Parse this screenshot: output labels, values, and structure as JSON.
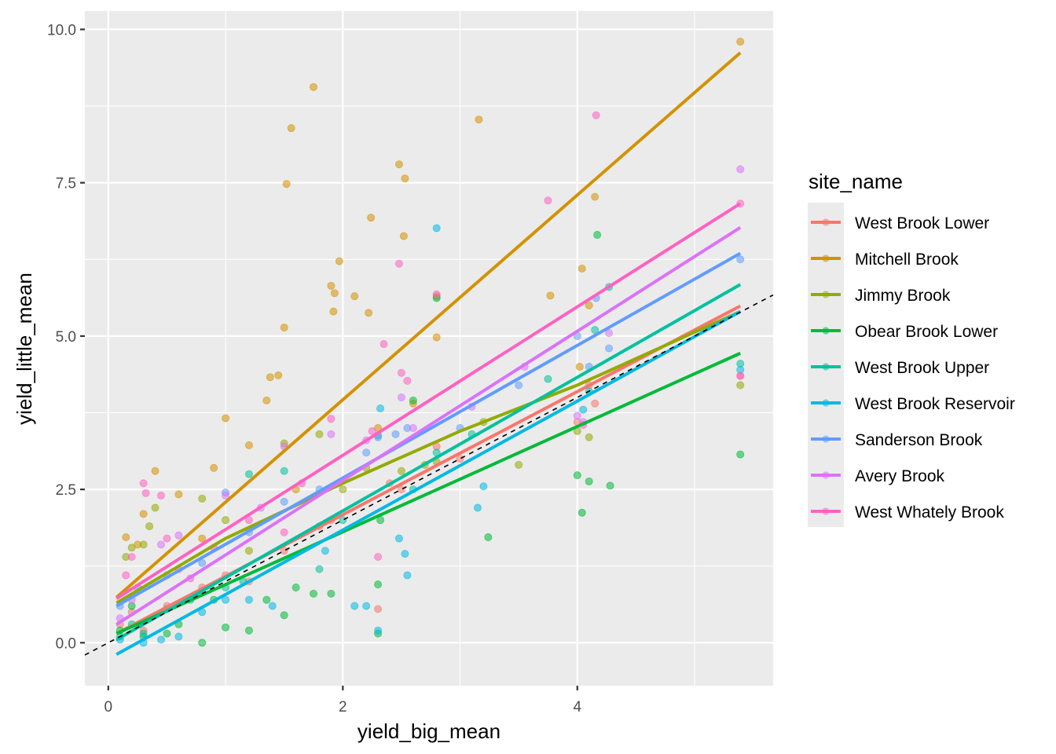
{
  "chart_data": {
    "type": "scatter",
    "title": "",
    "xlabel": "yield_big_mean",
    "ylabel": "yield_little_mean",
    "xlim": [
      -0.2,
      5.67
    ],
    "ylim": [
      -0.7,
      10.3
    ],
    "x_ticks": [
      0,
      2,
      4
    ],
    "x_tick_labels": [
      "0",
      "2",
      "4"
    ],
    "x_minor_ticks": [
      1,
      3,
      5
    ],
    "y_ticks": [
      0,
      2.5,
      5,
      7.5,
      10
    ],
    "y_tick_labels": [
      "0.0",
      "2.5",
      "5.0",
      "7.5",
      "10.0"
    ],
    "y_minor_ticks": [
      1.25,
      3.75,
      6.25,
      8.75
    ],
    "grid": true,
    "reference_line": {
      "type": "dashed",
      "slope": 1,
      "intercept": 0,
      "color": "#000000"
    },
    "legend": {
      "title": "site_name",
      "position": "right"
    },
    "series": [
      {
        "name": "West Brook Lower",
        "color": "#F8766D",
        "fit": {
          "x": [
            0.07,
            5.39
          ],
          "y": [
            0.15,
            5.49
          ]
        },
        "points": [
          [
            0.1,
            0.3
          ],
          [
            0.2,
            0.5
          ],
          [
            0.3,
            0.2
          ],
          [
            0.5,
            0.6
          ],
          [
            0.8,
            0.9
          ],
          [
            1.0,
            1.1
          ],
          [
            1.2,
            1.0
          ],
          [
            1.5,
            1.5
          ],
          [
            1.8,
            1.9
          ],
          [
            1.9,
            2.0
          ],
          [
            2.3,
            0.55
          ],
          [
            2.4,
            2.6
          ],
          [
            2.5,
            2.5
          ],
          [
            2.8,
            3.2
          ],
          [
            3.0,
            3.0
          ],
          [
            4.0,
            3.6
          ],
          [
            4.1,
            4.2
          ],
          [
            4.15,
            3.9
          ],
          [
            5.39,
            4.35
          ]
        ]
      },
      {
        "name": "Mitchell Brook",
        "color": "#D39200",
        "fit": {
          "x": [
            0.07,
            5.39
          ],
          "y": [
            0.74,
            9.62
          ]
        },
        "points": [
          [
            0.15,
            1.72
          ],
          [
            0.25,
            1.6
          ],
          [
            0.4,
            2.8
          ],
          [
            0.6,
            2.42
          ],
          [
            0.9,
            2.85
          ],
          [
            1.0,
            3.66
          ],
          [
            1.2,
            3.22
          ],
          [
            1.35,
            3.95
          ],
          [
            1.38,
            4.33
          ],
          [
            1.45,
            4.36
          ],
          [
            1.5,
            5.14
          ],
          [
            1.52,
            7.48
          ],
          [
            1.56,
            8.39
          ],
          [
            1.75,
            9.06
          ],
          [
            1.9,
            5.82
          ],
          [
            1.92,
            5.4
          ],
          [
            1.93,
            5.7
          ],
          [
            1.97,
            6.22
          ],
          [
            2.1,
            5.65
          ],
          [
            2.22,
            5.38
          ],
          [
            2.24,
            6.93
          ],
          [
            2.48,
            7.8
          ],
          [
            2.53,
            7.57
          ],
          [
            2.52,
            6.63
          ],
          [
            2.8,
            4.98
          ],
          [
            2.8,
            5.65
          ],
          [
            3.16,
            8.53
          ],
          [
            3.77,
            5.66
          ],
          [
            4.04,
            6.1
          ],
          [
            4.02,
            4.5
          ],
          [
            4.1,
            5.5
          ],
          [
            4.15,
            7.27
          ],
          [
            5.39,
            9.8
          ],
          [
            0.3,
            2.1
          ],
          [
            0.8,
            1.7
          ],
          [
            1.6,
            2.5
          ],
          [
            2.3,
            3.5
          ],
          [
            2.6,
            3.9
          ]
        ]
      },
      {
        "name": "Jimmy Brook",
        "color": "#93AA00",
        "fit": {
          "x": [
            0.07,
            1.0,
            2.0,
            3.0,
            4.0,
            5.39
          ],
          "y": [
            0.65,
            1.7,
            2.6,
            3.45,
            4.2,
            5.4
          ]
        },
        "points": [
          [
            0.15,
            1.4
          ],
          [
            0.2,
            1.55
          ],
          [
            0.3,
            1.6
          ],
          [
            0.35,
            1.9
          ],
          [
            0.4,
            2.2
          ],
          [
            0.8,
            2.35
          ],
          [
            1.0,
            2.0
          ],
          [
            1.2,
            1.5
          ],
          [
            1.5,
            3.25
          ],
          [
            1.8,
            3.4
          ],
          [
            2.0,
            2.5
          ],
          [
            2.2,
            2.85
          ],
          [
            2.5,
            2.8
          ],
          [
            2.7,
            2.9
          ],
          [
            2.8,
            2.95
          ],
          [
            3.2,
            3.6
          ],
          [
            3.5,
            2.9
          ],
          [
            4.0,
            3.45
          ],
          [
            4.1,
            3.35
          ],
          [
            5.39,
            4.2
          ]
        ]
      },
      {
        "name": "Obear Brook Lower",
        "color": "#00BA38",
        "fit": {
          "x": [
            0.07,
            5.39
          ],
          "y": [
            0.15,
            4.72
          ]
        },
        "points": [
          [
            0.1,
            0.2
          ],
          [
            0.3,
            0.1
          ],
          [
            0.5,
            0.15
          ],
          [
            0.8,
            0.0
          ],
          [
            0.9,
            0.7
          ],
          [
            1.0,
            0.25
          ],
          [
            1.2,
            0.2
          ],
          [
            1.35,
            0.7
          ],
          [
            1.5,
            0.45
          ],
          [
            1.6,
            0.9
          ],
          [
            1.75,
            0.8
          ],
          [
            1.9,
            0.8
          ],
          [
            2.3,
            0.95
          ],
          [
            2.3,
            0.15
          ],
          [
            2.32,
            2.0
          ],
          [
            2.6,
            3.95
          ],
          [
            2.8,
            5.62
          ],
          [
            3.24,
            1.72
          ],
          [
            4.0,
            2.73
          ],
          [
            4.04,
            2.12
          ],
          [
            4.1,
            2.63
          ],
          [
            4.28,
            2.56
          ],
          [
            4.17,
            6.65
          ],
          [
            5.39,
            3.07
          ],
          [
            0.2,
            0.6
          ],
          [
            0.6,
            0.3
          ]
        ]
      },
      {
        "name": "West Brook Upper",
        "color": "#00C19F",
        "fit": {
          "x": [
            0.07,
            5.39
          ],
          "y": [
            0.05,
            5.84
          ]
        },
        "points": [
          [
            0.1,
            0.1
          ],
          [
            0.2,
            0.3
          ],
          [
            0.3,
            0.15
          ],
          [
            0.5,
            0.55
          ],
          [
            0.7,
            0.7
          ],
          [
            1.0,
            0.9
          ],
          [
            1.15,
            1.0
          ],
          [
            1.2,
            2.75
          ],
          [
            1.5,
            2.8
          ],
          [
            1.8,
            1.2
          ],
          [
            2.0,
            2.0
          ],
          [
            2.3,
            3.38
          ],
          [
            2.6,
            2.5
          ],
          [
            2.8,
            3.1
          ],
          [
            3.1,
            3.4
          ],
          [
            3.75,
            4.3
          ],
          [
            4.1,
            4.1
          ],
          [
            4.15,
            5.1
          ],
          [
            4.27,
            5.8
          ],
          [
            5.39,
            4.55
          ]
        ]
      },
      {
        "name": "West Brook Reservoir",
        "color": "#00B9E3",
        "fit": {
          "x": [
            0.07,
            5.39
          ],
          "y": [
            -0.19,
            5.4
          ]
        },
        "points": [
          [
            0.1,
            0.05
          ],
          [
            0.3,
            0.0
          ],
          [
            0.45,
            0.05
          ],
          [
            0.6,
            0.1
          ],
          [
            0.8,
            0.5
          ],
          [
            1.0,
            0.7
          ],
          [
            1.2,
            0.7
          ],
          [
            1.4,
            0.6
          ],
          [
            1.85,
            1.5
          ],
          [
            2.1,
            0.6
          ],
          [
            2.2,
            0.6
          ],
          [
            2.3,
            0.2
          ],
          [
            2.32,
            3.82
          ],
          [
            2.48,
            1.7
          ],
          [
            2.55,
            1.1
          ],
          [
            2.53,
            1.45
          ],
          [
            2.8,
            6.76
          ],
          [
            3.15,
            2.2
          ],
          [
            3.2,
            2.55
          ],
          [
            4.05,
            3.8
          ],
          [
            5.39,
            4.45
          ]
        ]
      },
      {
        "name": "Sanderson Brook",
        "color": "#619CFF",
        "fit": {
          "x": [
            0.07,
            5.39
          ],
          "y": [
            0.6,
            6.35
          ]
        },
        "points": [
          [
            0.1,
            0.6
          ],
          [
            0.25,
            0.9
          ],
          [
            0.5,
            1.1
          ],
          [
            0.8,
            1.3
          ],
          [
            1.0,
            2.45
          ],
          [
            1.2,
            1.8
          ],
          [
            1.5,
            2.3
          ],
          [
            1.8,
            2.5
          ],
          [
            2.2,
            3.1
          ],
          [
            2.3,
            3.35
          ],
          [
            2.45,
            3.4
          ],
          [
            2.55,
            3.5
          ],
          [
            3.0,
            3.5
          ],
          [
            3.5,
            4.2
          ],
          [
            4.0,
            5.0
          ],
          [
            4.1,
            4.5
          ],
          [
            4.16,
            5.62
          ],
          [
            4.27,
            4.8
          ],
          [
            5.39,
            6.25
          ]
        ]
      },
      {
        "name": "Avery Brook",
        "color": "#DB72FB",
        "fit": {
          "x": [
            0.07,
            5.39
          ],
          "y": [
            0.3,
            6.77
          ]
        },
        "points": [
          [
            0.1,
            0.4
          ],
          [
            0.2,
            0.7
          ],
          [
            0.45,
            1.6
          ],
          [
            0.6,
            1.75
          ],
          [
            1.0,
            2.4
          ],
          [
            1.3,
            2.2
          ],
          [
            1.5,
            3.2
          ],
          [
            1.9,
            3.4
          ],
          [
            2.2,
            3.3
          ],
          [
            2.5,
            4.0
          ],
          [
            2.6,
            3.5
          ],
          [
            3.1,
            3.85
          ],
          [
            3.55,
            4.5
          ],
          [
            4.0,
            3.7
          ],
          [
            4.05,
            3.6
          ],
          [
            4.27,
            5.05
          ],
          [
            5.39,
            7.72
          ]
        ]
      },
      {
        "name": "West Whately Brook",
        "color": "#FF61C3",
        "fit": {
          "x": [
            0.07,
            5.39
          ],
          "y": [
            0.72,
            7.16
          ]
        },
        "points": [
          [
            0.15,
            1.1
          ],
          [
            0.2,
            1.4
          ],
          [
            0.3,
            2.6
          ],
          [
            0.32,
            2.44
          ],
          [
            0.45,
            2.4
          ],
          [
            0.5,
            1.7
          ],
          [
            0.6,
            1.2
          ],
          [
            0.9,
            1.55
          ],
          [
            1.2,
            2.0
          ],
          [
            1.5,
            1.8
          ],
          [
            1.65,
            2.6
          ],
          [
            1.9,
            3.65
          ],
          [
            2.25,
            3.45
          ],
          [
            2.3,
            1.4
          ],
          [
            2.35,
            4.87
          ],
          [
            2.5,
            4.4
          ],
          [
            2.55,
            4.27
          ],
          [
            2.48,
            6.18
          ],
          [
            2.8,
            5.68
          ],
          [
            3.75,
            7.21
          ],
          [
            4.16,
            8.6
          ],
          [
            4.05,
            3.55
          ],
          [
            5.39,
            7.16
          ],
          [
            5.39,
            4.35
          ],
          [
            0.7,
            1.05
          ]
        ]
      }
    ]
  }
}
